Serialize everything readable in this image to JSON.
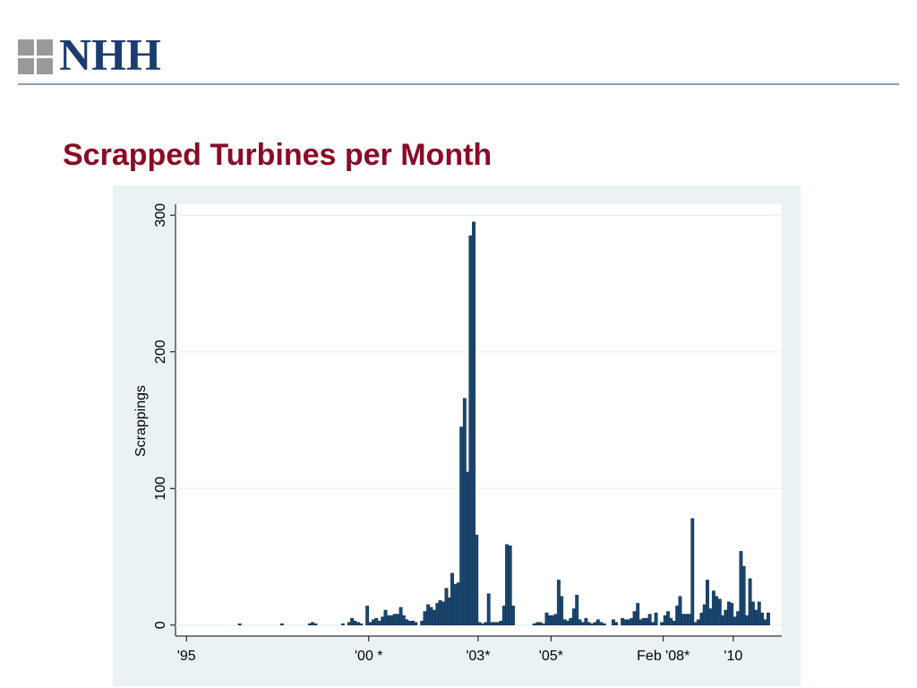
{
  "header": {
    "logo": "NHH"
  },
  "chart_data": {
    "type": "bar",
    "title": "Scrapped Turbines per Month",
    "ylabel": "Scrappings",
    "color": "#1a476f",
    "grid": true,
    "xlim": [
      1994.7,
      2011.33
    ],
    "ylim": [
      -8,
      308
    ],
    "xticks": [
      {
        "value": 1995,
        "label": "'95"
      },
      {
        "value": 2000,
        "label": "'00 *"
      },
      {
        "value": 2003,
        "label": "'03*"
      },
      {
        "value": 2005,
        "label": "'05*"
      },
      {
        "value": 2008.08,
        "label": "Feb '08*"
      },
      {
        "value": 2010,
        "label": "'10"
      }
    ],
    "yticks": [
      0,
      100,
      200,
      300
    ],
    "x": [
      1996.46,
      1997.62,
      1998.38,
      1998.46,
      1998.54,
      1999.29,
      1999.46,
      1999.54,
      1999.62,
      1999.71,
      1999.79,
      1999.96,
      2000.04,
      2000.13,
      2000.21,
      2000.29,
      2000.38,
      2000.46,
      2000.54,
      2000.63,
      2000.71,
      2000.79,
      2000.88,
      2000.96,
      2001.04,
      2001.13,
      2001.21,
      2001.29,
      2001.46,
      2001.54,
      2001.63,
      2001.71,
      2001.79,
      2001.88,
      2001.96,
      2002.04,
      2002.13,
      2002.21,
      2002.29,
      2002.38,
      2002.46,
      2002.54,
      2002.63,
      2002.71,
      2002.79,
      2002.88,
      2002.96,
      2003.04,
      2003.13,
      2003.21,
      2003.29,
      2003.38,
      2003.46,
      2003.54,
      2003.63,
      2003.71,
      2003.79,
      2003.88,
      2003.96,
      2004.54,
      2004.63,
      2004.71,
      2004.79,
      2004.88,
      2004.96,
      2005.04,
      2005.13,
      2005.21,
      2005.29,
      2005.38,
      2005.46,
      2005.54,
      2005.63,
      2005.71,
      2005.79,
      2005.88,
      2005.96,
      2006.04,
      2006.13,
      2006.21,
      2006.29,
      2006.38,
      2006.46,
      2006.71,
      2006.79,
      2006.96,
      2007.04,
      2007.13,
      2007.21,
      2007.29,
      2007.38,
      2007.46,
      2007.54,
      2007.63,
      2007.71,
      2007.79,
      2007.88,
      2008.04,
      2008.13,
      2008.21,
      2008.29,
      2008.38,
      2008.46,
      2008.54,
      2008.63,
      2008.71,
      2008.79,
      2008.88,
      2008.96,
      2009.04,
      2009.13,
      2009.21,
      2009.29,
      2009.38,
      2009.46,
      2009.54,
      2009.63,
      2009.71,
      2009.79,
      2009.88,
      2009.96,
      2010.04,
      2010.13,
      2010.21,
      2010.29,
      2010.38,
      2010.46,
      2010.54,
      2010.63,
      2010.71,
      2010.79,
      2010.88,
      2010.96
    ],
    "values": [
      1,
      1,
      1,
      2,
      1,
      1,
      2,
      5,
      3,
      2,
      1,
      14,
      2,
      4,
      5,
      3,
      6,
      11,
      7,
      7,
      8,
      8,
      13,
      7,
      4,
      3,
      3,
      2,
      3,
      10,
      15,
      13,
      11,
      16,
      18,
      17,
      27,
      20,
      38,
      30,
      31,
      145,
      166,
      112,
      285,
      295,
      66,
      2,
      1,
      2,
      23,
      2,
      2,
      2,
      3,
      14,
      59,
      58,
      14,
      1,
      2,
      2,
      1,
      9,
      7,
      7,
      8,
      33,
      21,
      4,
      3,
      5,
      12,
      22,
      4,
      2,
      5,
      2,
      1,
      2,
      4,
      2,
      1,
      4,
      2,
      5,
      4,
      4,
      5,
      10,
      16,
      4,
      5,
      5,
      8,
      2,
      9,
      2,
      7,
      10,
      5,
      3,
      14,
      21,
      8,
      8,
      8,
      78,
      2,
      4,
      9,
      15,
      33,
      12,
      25,
      21,
      19,
      7,
      11,
      17,
      16,
      6,
      10,
      54,
      43,
      7,
      34,
      17,
      11,
      17,
      9,
      4,
      9
    ]
  }
}
